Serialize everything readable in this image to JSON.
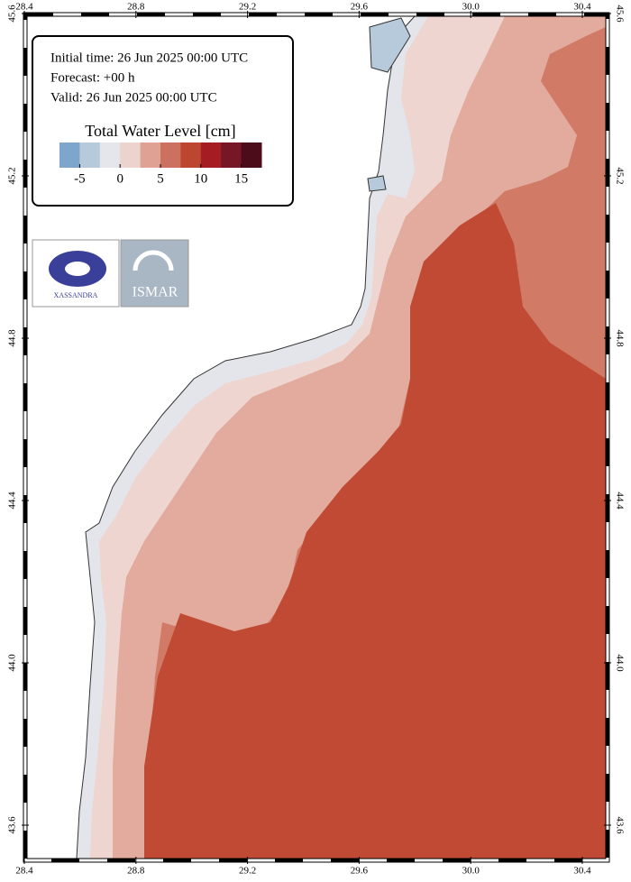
{
  "info": {
    "lines": [
      "Initial time: 26 Jun 2025 00:00 UTC",
      "Forecast: +00 h",
      "Valid: 26 Jun 2025 00:00 UTC"
    ]
  },
  "colorbar": {
    "title": "Total Water Level [cm]",
    "lim": [
      -7.5,
      17.5
    ],
    "ticks": [
      -5,
      0,
      5,
      10,
      15
    ],
    "colors": [
      "#7ea6cc",
      "#b6cadb",
      "#e4e6ea",
      "#ecd3cd",
      "#dea193",
      "#cc7060",
      "#bd4631",
      "#a51d22",
      "#771626",
      "#4d0c1a"
    ]
  },
  "map": {
    "lon_lim": [
      28.4,
      30.5
    ],
    "lat_lim": [
      43.5,
      45.6
    ],
    "lon_ticks": [
      28.4,
      28.8,
      29.2,
      29.6,
      {
        "value": 30,
        "label": "30.0"
      },
      30.4
    ],
    "lat_ticks": [
      45.6,
      45.2,
      44.8,
      44.4,
      {
        "value": 44,
        "label": "44.0"
      },
      43.6
    ]
  },
  "logos": [
    "XASSANDRA",
    "ISMAR"
  ]
}
